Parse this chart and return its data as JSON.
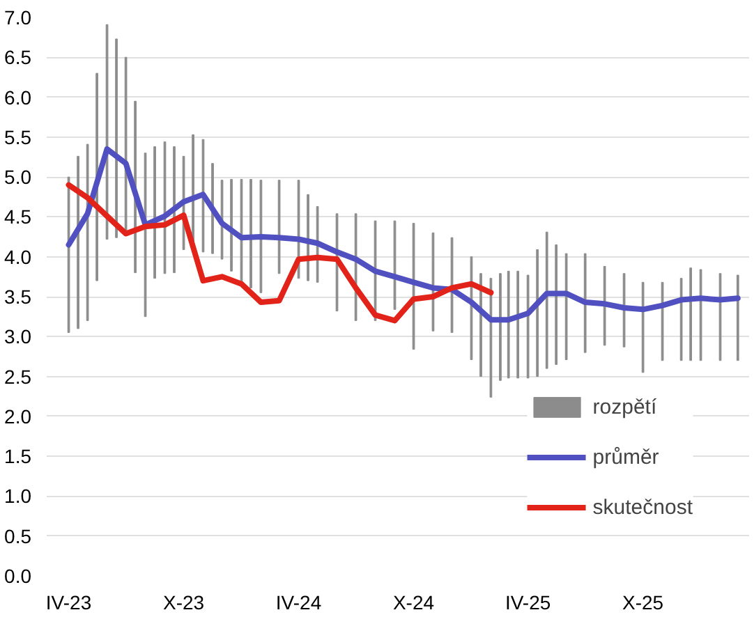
{
  "chart_data": {
    "type": "line",
    "xlim": [
      "2023-02-25",
      "2026-03-19"
    ],
    "ylim": [
      0,
      7
    ],
    "xticks": [
      {
        "value": "2023-04-01",
        "label": "IV-23"
      },
      {
        "value": "2023-10-01",
        "label": "X-23"
      },
      {
        "value": "2024-04-01",
        "label": "IV-24"
      },
      {
        "value": "2024-10-01",
        "label": "X-24"
      },
      {
        "value": "2025-04-01",
        "label": "IV-25"
      },
      {
        "value": "2025-10-01",
        "label": "X-25"
      }
    ],
    "yticks": [
      {
        "value": 0,
        "label": "0.0"
      },
      {
        "value": 0.5,
        "label": "0.5"
      },
      {
        "value": 1,
        "label": "1.0"
      },
      {
        "value": 1.5,
        "label": "1.5"
      },
      {
        "value": 2,
        "label": "2.0"
      },
      {
        "value": 2.5,
        "label": "2.5"
      },
      {
        "value": 3,
        "label": "3.0"
      },
      {
        "value": 3.5,
        "label": "3.5"
      },
      {
        "value": 4,
        "label": "4.0"
      },
      {
        "value": 4.5,
        "label": "4.5"
      },
      {
        "value": 5,
        "label": "5.0"
      },
      {
        "value": 5.5,
        "label": "5.5"
      },
      {
        "value": 6,
        "label": "6.0"
      },
      {
        "value": 6.5,
        "label": "6.5"
      },
      {
        "value": 7,
        "label": "7.0"
      }
    ],
    "grid": "y",
    "legend": "bottom right",
    "series": [
      {
        "name": "rozpětí",
        "type": "bar",
        "color": "#8c8c8c",
        "x": [
          "2023-04-01",
          "2023-04-16",
          "2023-05-01",
          "2023-05-16",
          "2023-06-01",
          "2023-06-16",
          "2023-07-01",
          "2023-07-16",
          "2023-08-01",
          "2023-08-16",
          "2023-09-01",
          "2023-09-16",
          "2023-10-01",
          "2023-10-16",
          "2023-11-01",
          "2023-11-16",
          "2023-12-01",
          "2023-12-16",
          "2024-01-01",
          "2024-01-16",
          "2024-02-01",
          "2024-03-01",
          "2024-04-01",
          "2024-04-16",
          "2024-05-01",
          "2024-06-01",
          "2024-07-01",
          "2024-08-01",
          "2024-09-01",
          "2024-10-01",
          "2024-11-01",
          "2024-12-01",
          "2025-01-01",
          "2025-01-16",
          "2025-02-01",
          "2025-02-16",
          "2025-03-01",
          "2025-03-16",
          "2025-04-01",
          "2025-04-16",
          "2025-05-01",
          "2025-05-16",
          "2025-06-01",
          "2025-07-01",
          "2025-08-01",
          "2025-09-01",
          "2025-10-01",
          "2025-11-01",
          "2025-12-01",
          "2025-12-16",
          "2026-01-01",
          "2026-02-01",
          "2026-03-01"
        ],
        "base": [
          3.05,
          3.1,
          3.2,
          3.7,
          4.22,
          4.24,
          4.3,
          3.8,
          3.25,
          3.73,
          3.79,
          3.8,
          4.09,
          4.09,
          4.06,
          4.04,
          3.97,
          3.82,
          3.68,
          3.61,
          3.55,
          3.79,
          3.73,
          3.7,
          3.68,
          3.32,
          3.2,
          3.2,
          3.34,
          2.84,
          3.07,
          3.05,
          2.71,
          2.5,
          2.24,
          2.45,
          2.48,
          2.48,
          2.48,
          2.5,
          2.6,
          2.65,
          2.71,
          2.8,
          2.89,
          2.87,
          2.55,
          2.7,
          2.7,
          2.7,
          2.7,
          2.7,
          2.7
        ],
        "values": [
          1.95,
          2.16,
          2.21,
          2.6,
          2.69,
          2.49,
          2.2,
          2.15,
          2.05,
          1.65,
          1.65,
          1.58,
          1.17,
          1.44,
          1.41,
          1.13,
          0.99,
          1.15,
          1.29,
          1.36,
          1.41,
          1.17,
          1.23,
          1.08,
          0.95,
          1.22,
          1.34,
          1.25,
          1.11,
          1.58,
          1.23,
          1.19,
          1.29,
          1.29,
          1.49,
          1.34,
          1.34,
          1.34,
          1.29,
          1.59,
          1.71,
          1.5,
          1.33,
          1.24,
          0.99,
          0.92,
          1.13,
          0.98,
          1.03,
          1.16,
          1.14,
          1.09,
          1.07
        ]
      },
      {
        "name": "průměr",
        "color": "#5050c0",
        "x": [
          "2023-04-01",
          "2023-05-01",
          "2023-06-01",
          "2023-07-01",
          "2023-08-01",
          "2023-09-01",
          "2023-10-01",
          "2023-11-01",
          "2023-12-01",
          "2024-01-01",
          "2024-02-01",
          "2024-03-01",
          "2024-04-01",
          "2024-05-01",
          "2024-06-01",
          "2024-07-01",
          "2024-08-01",
          "2024-09-01",
          "2024-10-01",
          "2024-11-01",
          "2024-12-01",
          "2025-01-01",
          "2025-02-01",
          "2025-03-01",
          "2025-04-01",
          "2025-05-01",
          "2025-06-01",
          "2025-07-01",
          "2025-08-01",
          "2025-09-01",
          "2025-10-01",
          "2025-11-01",
          "2025-12-01",
          "2026-01-01",
          "2026-02-01",
          "2026-03-01"
        ],
        "values": [
          4.15,
          4.54,
          5.35,
          5.17,
          4.4,
          4.51,
          4.69,
          4.78,
          4.42,
          4.24,
          4.25,
          4.24,
          4.22,
          4.17,
          4.06,
          3.97,
          3.82,
          3.75,
          3.68,
          3.61,
          3.59,
          3.43,
          3.21,
          3.21,
          3.29,
          3.54,
          3.54,
          3.43,
          3.41,
          3.36,
          3.34,
          3.39,
          3.46,
          3.48,
          3.46,
          3.48
        ]
      },
      {
        "name": "skutečnost",
        "color": "#e2231a",
        "x": [
          "2023-04-01",
          "2023-05-01",
          "2023-06-01",
          "2023-07-01",
          "2023-08-01",
          "2023-09-01",
          "2023-10-01",
          "2023-11-01",
          "2023-12-01",
          "2024-01-01",
          "2024-02-01",
          "2024-03-01",
          "2024-04-01",
          "2024-05-01",
          "2024-06-01",
          "2024-07-01",
          "2024-08-01",
          "2024-09-01",
          "2024-10-01",
          "2024-11-01",
          "2024-12-01",
          "2025-01-01",
          "2025-02-01"
        ],
        "values": [
          4.9,
          4.74,
          4.51,
          4.29,
          4.38,
          4.4,
          4.52,
          3.7,
          3.75,
          3.66,
          3.43,
          3.45,
          3.97,
          3.99,
          3.97,
          3.61,
          3.27,
          3.2,
          3.47,
          3.5,
          3.61,
          3.66,
          3.55
        ]
      }
    ]
  }
}
